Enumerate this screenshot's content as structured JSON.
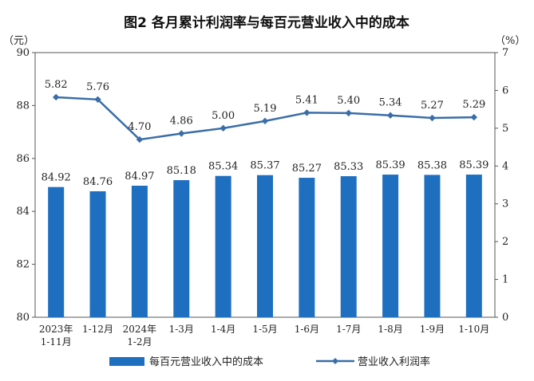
{
  "chart_data": {
    "type": "bar+line",
    "title": "图2 各月累计利润率与每百元营业收入中的成本",
    "left_unit": "（元）",
    "right_unit": "（%）",
    "categories": [
      [
        "2023年",
        "1-11月"
      ],
      [
        "1-12月"
      ],
      [
        "2024年",
        "1-2月"
      ],
      [
        "1-3月"
      ],
      [
        "1-4月"
      ],
      [
        "1-5月"
      ],
      [
        "1-6月"
      ],
      [
        "1-7月"
      ],
      [
        "1-8月"
      ],
      [
        "1-9月"
      ],
      [
        "1-10月"
      ]
    ],
    "left_axis": {
      "min": 80,
      "max": 90,
      "ticks": [
        "80",
        "82",
        "84",
        "86",
        "88",
        "90"
      ]
    },
    "right_axis": {
      "min": 0,
      "max": 7,
      "ticks": [
        "0",
        "1",
        "2",
        "3",
        "4",
        "5",
        "6",
        "7"
      ]
    },
    "series": [
      {
        "name": "每百元营业收入中的成本",
        "type": "bar",
        "axis": "left",
        "color": "#1f6fc0",
        "values": [
          84.92,
          84.76,
          84.97,
          85.18,
          85.34,
          85.37,
          85.27,
          85.33,
          85.39,
          85.38,
          85.39
        ],
        "labels": [
          "84.92",
          "84.76",
          "84.97",
          "85.18",
          "85.34",
          "85.37",
          "85.27",
          "85.33",
          "85.39",
          "85.38",
          "85.39"
        ]
      },
      {
        "name": "营业收入利润率",
        "type": "line",
        "axis": "right",
        "color": "#3a6ea8",
        "values": [
          5.82,
          5.76,
          4.7,
          4.86,
          5.0,
          5.19,
          5.41,
          5.4,
          5.34,
          5.27,
          5.29
        ],
        "labels": [
          "5.82",
          "5.76",
          "4.70",
          "4.86",
          "5.00",
          "5.19",
          "5.41",
          "5.40",
          "5.34",
          "5.27",
          "5.29"
        ]
      }
    ],
    "legend_position": "bottom"
  }
}
